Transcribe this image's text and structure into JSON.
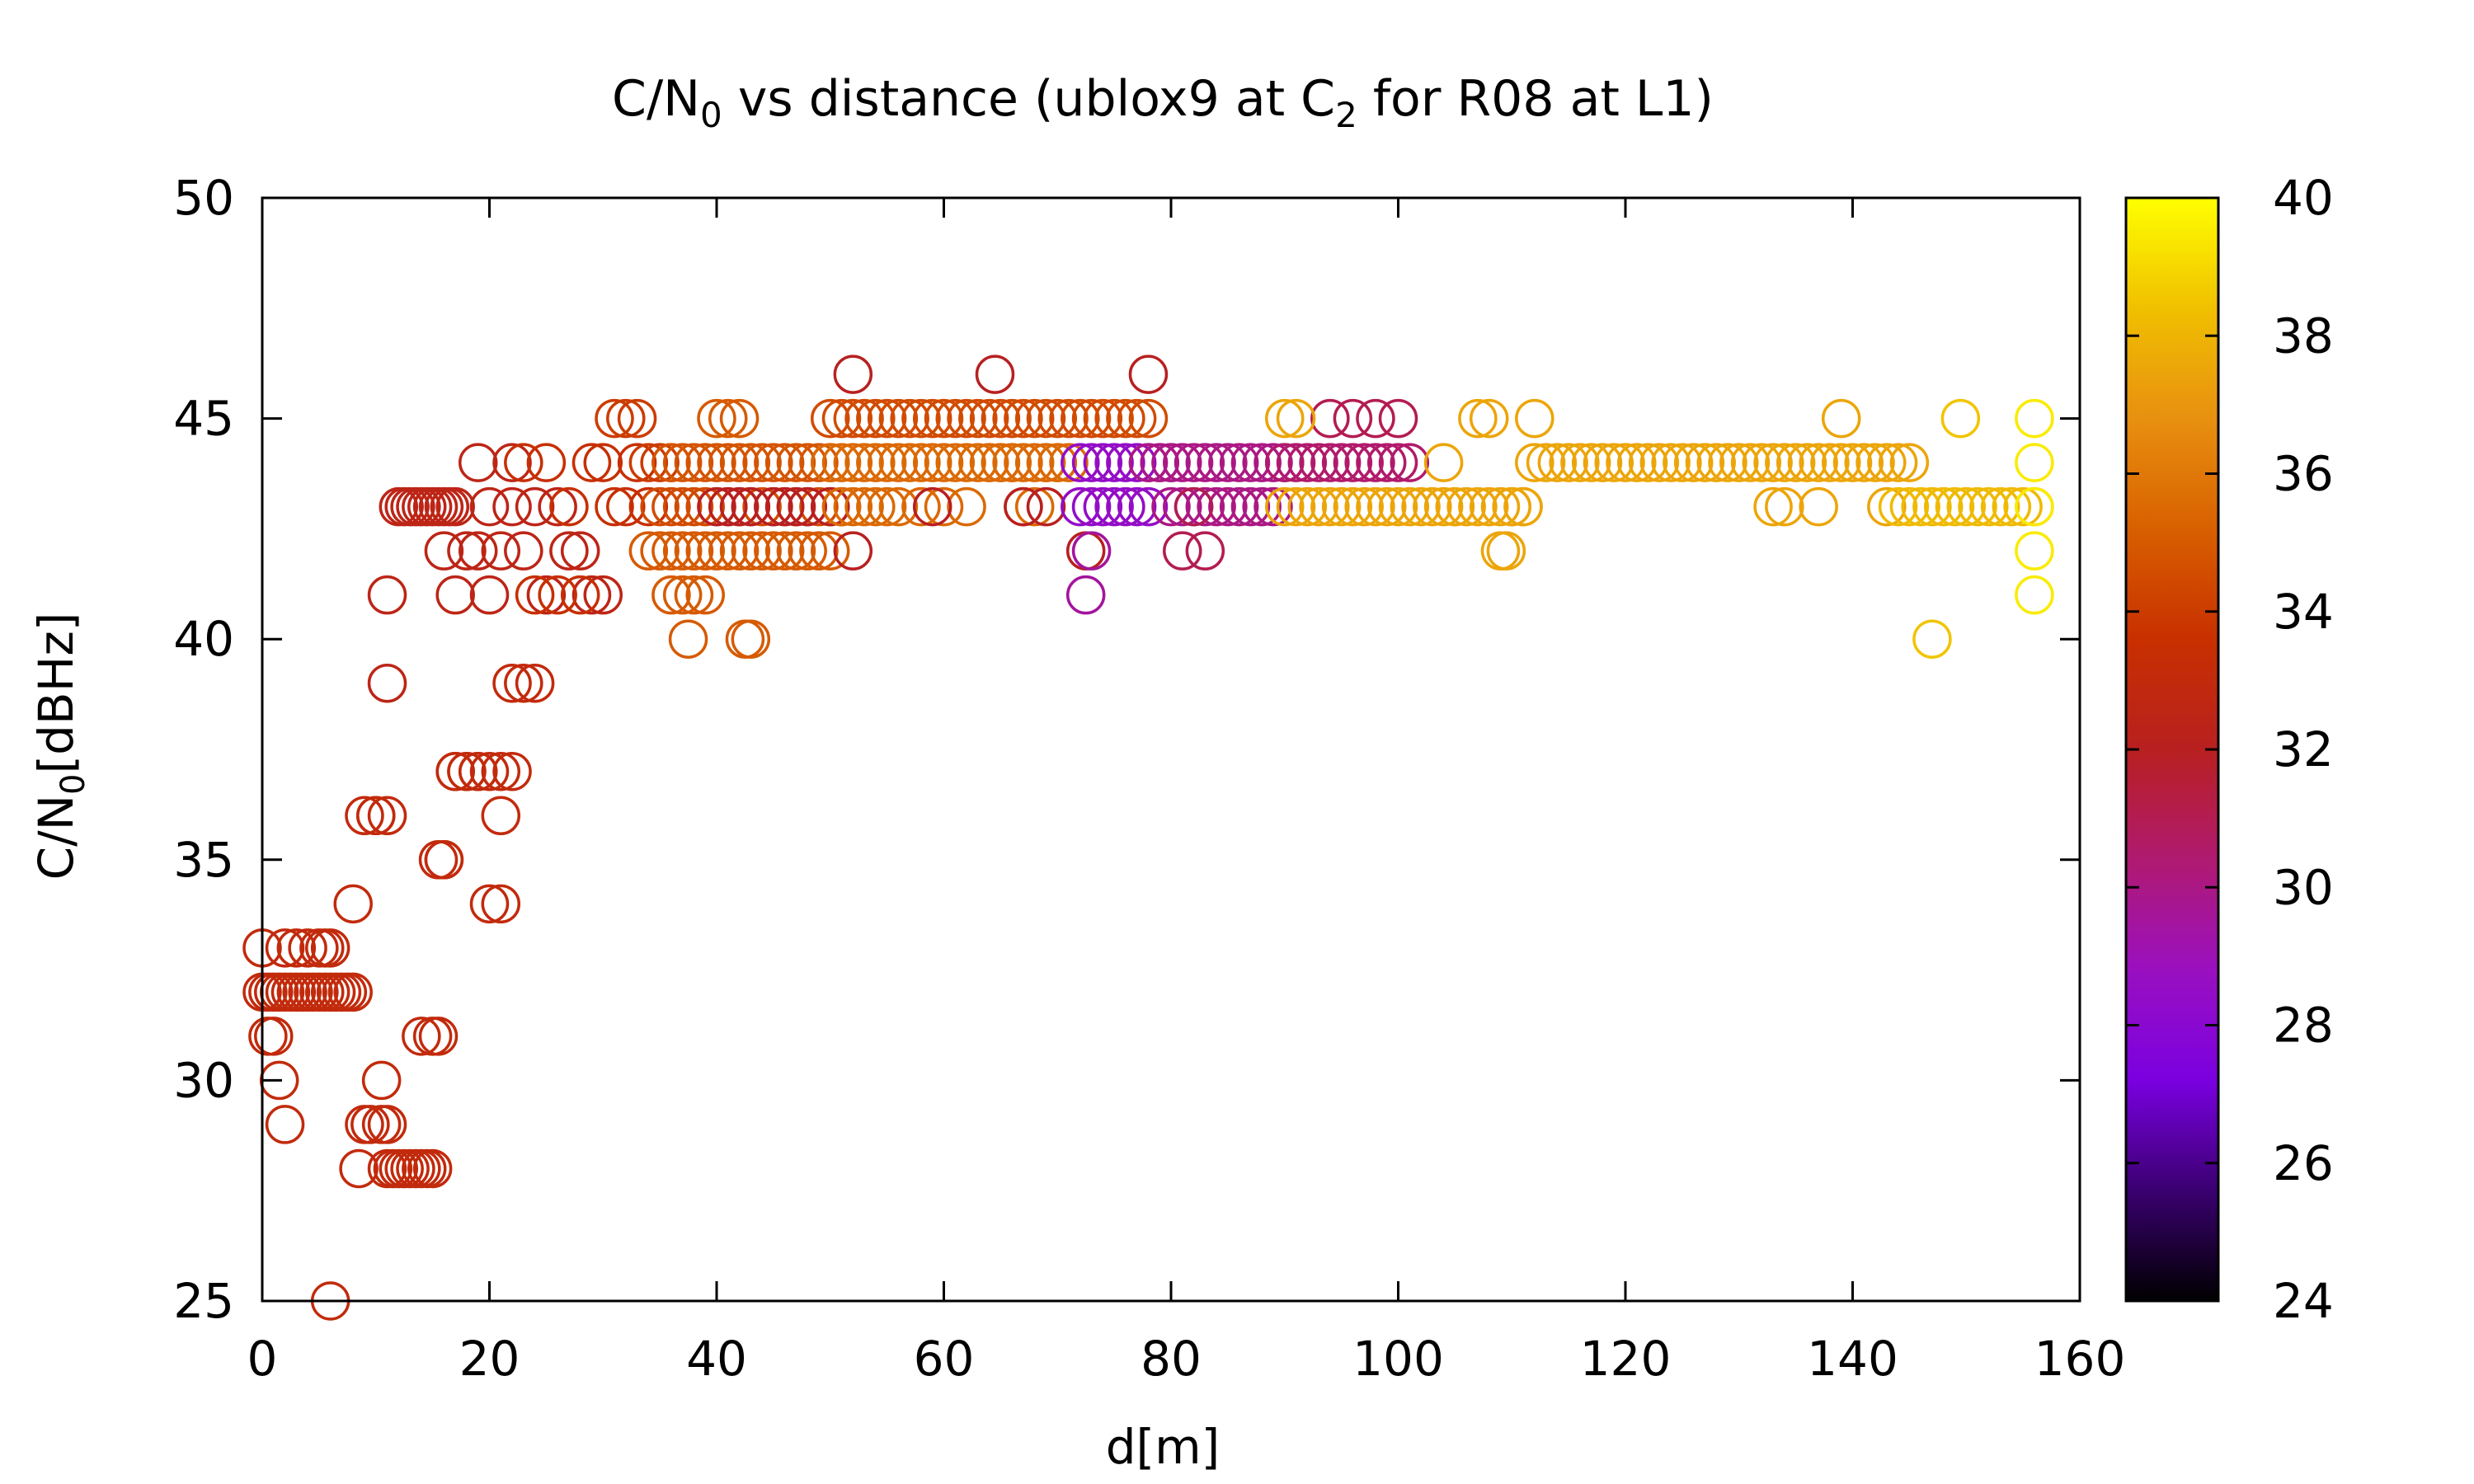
{
  "chart_data": {
    "type": "scatter",
    "title": "C/N0 vs distance (ublox9 at C2 for R08 at L1)",
    "title_parts": {
      "a": "C/N",
      "a_sub": "0",
      "b": " vs distance (ublox9 at C",
      "b_sub": "2",
      "c": " for R08 at L1)"
    },
    "xlabel": "d[m]",
    "ylabel": "C/N0[dBHz]",
    "ylabel_parts": {
      "a": "C/N",
      "a_sub": "0",
      "b": "[dBHz]"
    },
    "xlim": [
      0,
      160
    ],
    "ylim": [
      25,
      50
    ],
    "xticks": [
      "0",
      "20",
      "40",
      "60",
      "80",
      "100",
      "120",
      "140",
      "160"
    ],
    "yticks": [
      "25",
      "30",
      "35",
      "40",
      "45",
      "50"
    ],
    "colorbar": {
      "range": [
        24,
        40
      ],
      "ticks": [
        "24",
        "26",
        "28",
        "30",
        "32",
        "34",
        "36",
        "38",
        "40"
      ],
      "palette": [
        "#000000",
        "#3a0070",
        "#7a00e0",
        "#9a10c0",
        "#b01a70",
        "#b82020",
        "#c83000",
        "#d86000",
        "#e89010",
        "#f0c000",
        "#ffff00"
      ]
    },
    "marker": "open circle",
    "point_sets": [
      {
        "x": [
          0,
          0.5,
          1,
          1.5,
          2,
          2.5,
          3,
          3.5,
          4,
          4.5,
          5,
          5.5,
          6,
          6.5,
          7,
          7.5,
          8
        ],
        "y": [
          32,
          32,
          32,
          32,
          32,
          32,
          32,
          32,
          32,
          32,
          32,
          32,
          32,
          32,
          32,
          32,
          32
        ],
        "c": 33
      },
      {
        "x": [
          0,
          2,
          3,
          4,
          5,
          5.5,
          6
        ],
        "y": [
          33,
          33,
          33,
          33,
          33,
          33,
          33
        ],
        "c": 33
      },
      {
        "x": [
          0.5,
          1,
          1.5,
          2
        ],
        "y": [
          31,
          31,
          30,
          29
        ],
        "c": 33
      },
      {
        "x": [
          6
        ],
        "y": [
          25
        ],
        "c": 33
      },
      {
        "x": [
          8,
          10.5,
          9,
          9.5,
          10.5,
          11,
          10,
          10,
          11
        ],
        "y": [
          34,
          30,
          29,
          29,
          29,
          29,
          36,
          36,
          36
        ],
        "c": 33
      },
      {
        "x": [
          9,
          11,
          11.5,
          12,
          12.5,
          13,
          13.5,
          14,
          14.5,
          15
        ],
        "y": [
          36,
          28,
          28,
          28,
          28,
          28,
          28,
          28,
          28,
          28
        ],
        "c": 33
      },
      {
        "x": [
          8.5,
          14,
          15,
          15.5,
          15.5,
          16,
          16,
          17,
          17,
          18,
          18,
          19,
          19,
          20,
          21,
          22
        ],
        "y": [
          28,
          31,
          31,
          31,
          35,
          35,
          35,
          37,
          37,
          37,
          37,
          37,
          37,
          37,
          37,
          37
        ],
        "c": 33
      },
      {
        "x": [
          20,
          21,
          21,
          22,
          23,
          24
        ],
        "y": [
          34,
          34,
          36,
          39,
          39,
          39
        ],
        "c": 33
      },
      {
        "x": [
          11,
          11,
          12,
          12.5,
          13,
          13.5,
          14,
          14.5,
          15,
          15.5,
          16,
          16.5,
          17
        ],
        "y": [
          41,
          39,
          43,
          43,
          43,
          43,
          43,
          43,
          43,
          43,
          43,
          43,
          43
        ],
        "c": 32.5
      },
      {
        "x": [
          16,
          17,
          18,
          19,
          19,
          20,
          20,
          21,
          22,
          22,
          23,
          24,
          25,
          26,
          27,
          28,
          29,
          30
        ],
        "y": [
          42,
          41,
          42,
          42,
          44,
          43,
          41,
          42,
          44,
          43,
          42,
          43,
          41,
          43,
          42,
          42,
          41,
          41
        ],
        "c": 32.5
      },
      {
        "x": [
          23,
          24,
          25,
          26,
          27,
          28,
          29,
          30,
          31,
          32,
          33,
          34
        ],
        "y": [
          44,
          41,
          44,
          41,
          43,
          41,
          44,
          44,
          43,
          43,
          44,
          43
        ],
        "c": 33.5
      },
      {
        "x": [
          31,
          32,
          33,
          34,
          35,
          36
        ],
        "y": [
          45,
          45,
          45,
          44,
          44,
          44
        ],
        "c": 34
      },
      {
        "x": [
          34,
          35,
          36,
          37,
          38,
          39,
          40,
          41,
          42,
          43,
          44,
          45,
          46,
          47,
          48,
          49,
          50
        ],
        "y": [
          42,
          42,
          42,
          42,
          42,
          42,
          42,
          42,
          42,
          42,
          42,
          42,
          42,
          42,
          42,
          42,
          42
        ],
        "c": 35
      },
      {
        "x": [
          35,
          36,
          37,
          38,
          39,
          40,
          41,
          42,
          43,
          44,
          45,
          46,
          47,
          48,
          49,
          50
        ],
        "y": [
          43,
          43,
          43,
          43,
          43,
          43,
          43,
          43,
          43,
          43,
          43,
          43,
          43,
          43,
          43,
          43
        ],
        "c": 34.5
      },
      {
        "x": [
          36,
          37,
          38,
          39,
          40,
          41,
          42,
          43,
          44,
          45,
          46,
          47,
          48,
          49,
          50
        ],
        "y": [
          44,
          44,
          44,
          44,
          44,
          44,
          44,
          44,
          44,
          44,
          44,
          44,
          44,
          44,
          44
        ],
        "c": 34.8
      },
      {
        "x": [
          36,
          37,
          37.5,
          38,
          39,
          40,
          41,
          42,
          42.5,
          43
        ],
        "y": [
          41,
          41,
          40,
          41,
          41,
          45,
          45,
          45,
          40,
          40
        ],
        "c": 35
      },
      {
        "x": [
          40,
          41,
          42,
          43,
          45,
          46,
          47,
          48,
          50,
          51,
          52
        ],
        "y": [
          43,
          43,
          43,
          43,
          43,
          43,
          43,
          43,
          43,
          43,
          42
        ],
        "c": 32
      },
      {
        "x": [
          50,
          51,
          52,
          53,
          54,
          55,
          56,
          57,
          58,
          59,
          60,
          61,
          62,
          63,
          64,
          65,
          66,
          67,
          68,
          69,
          70,
          71,
          72,
          73,
          74,
          75,
          76,
          77,
          78
        ],
        "y": [
          45,
          45,
          45,
          45,
          45,
          45,
          45,
          45,
          45,
          45,
          45,
          45,
          45,
          45,
          45,
          45,
          45,
          45,
          45,
          45,
          45,
          45,
          45,
          45,
          45,
          45,
          45,
          45,
          45
        ],
        "c": 34.5
      },
      {
        "x": [
          50,
          51,
          52,
          53,
          54,
          55,
          56,
          57,
          58,
          59,
          60,
          61,
          62,
          63,
          64,
          65,
          66,
          67,
          68,
          69,
          70,
          71
        ],
        "y": [
          44,
          44,
          44,
          44,
          44,
          44,
          44,
          44,
          44,
          44,
          44,
          44,
          44,
          44,
          44,
          44,
          44,
          44,
          44,
          44,
          44,
          44
        ],
        "c": 35.5
      },
      {
        "x": [
          51,
          52,
          53,
          54,
          55,
          56,
          58,
          60,
          62,
          64,
          65,
          66,
          67,
          68,
          69,
          70
        ],
        "y": [
          43,
          43,
          43,
          43,
          43,
          43,
          43,
          43,
          43,
          44,
          44,
          44,
          43,
          43,
          44,
          44
        ],
        "c": 35.5
      },
      {
        "x": [
          52,
          59,
          64.5,
          67,
          69,
          72.5,
          78
        ],
        "y": [
          46,
          43,
          46,
          43,
          43,
          42,
          46
        ],
        "c": 32
      },
      {
        "x": [
          72,
          73,
          74,
          75,
          76,
          77,
          78,
          79,
          80
        ],
        "y": [
          44,
          44,
          44,
          44,
          44,
          44,
          44,
          44,
          44
        ],
        "c": 28.5
      },
      {
        "x": [
          72,
          73,
          74,
          75,
          76,
          77,
          78
        ],
        "y": [
          43,
          43,
          43,
          43,
          43,
          43,
          43
        ],
        "c": 28.5
      },
      {
        "x": [
          72.5,
          73
        ],
        "y": [
          41,
          42
        ],
        "c": 29.5
      },
      {
        "x": [
          78,
          79,
          80,
          81,
          82,
          83,
          84,
          85,
          86,
          87,
          88,
          89,
          90
        ],
        "y": [
          44,
          44,
          44,
          44,
          44,
          44,
          44,
          44,
          44,
          44,
          44,
          44,
          44
        ],
        "c": 30
      },
      {
        "x": [
          80,
          81,
          82,
          83,
          84,
          85,
          86,
          87,
          88,
          89
        ],
        "y": [
          43,
          43,
          43,
          43,
          43,
          43,
          43,
          43,
          43,
          43
        ],
        "c": 30
      },
      {
        "x": [
          81,
          82,
          83
        ],
        "y": [
          42,
          43,
          42
        ],
        "c": 31
      },
      {
        "x": [
          90,
          91,
          92,
          93,
          94,
          95,
          96,
          97,
          98,
          99,
          100,
          101
        ],
        "y": [
          44,
          44,
          44,
          44,
          44,
          44,
          44,
          44,
          44,
          44,
          44,
          44
        ],
        "c": 30.5
      },
      {
        "x": [
          94,
          96,
          98,
          100
        ],
        "y": [
          45,
          45,
          45,
          45
        ],
        "c": 31
      },
      {
        "x": [
          90,
          91,
          92,
          93,
          94,
          95,
          96,
          97,
          98,
          99,
          100,
          101,
          102,
          103,
          104,
          105,
          106,
          107,
          108,
          109,
          110,
          111
        ],
        "y": [
          43,
          43,
          43,
          43,
          43,
          43,
          43,
          43,
          43,
          43,
          43,
          43,
          43,
          43,
          43,
          43,
          43,
          43,
          43,
          43,
          43,
          43
        ],
        "c": 37.5
      },
      {
        "x": [
          90,
          91,
          104,
          105,
          107,
          108,
          109,
          109.5,
          110,
          111,
          112
        ],
        "y": [
          45,
          45,
          44,
          43,
          45,
          45,
          42,
          42,
          43,
          43,
          45
        ],
        "c": 37.5
      },
      {
        "x": [
          112,
          113,
          114,
          115,
          116,
          117,
          118,
          119,
          120,
          121,
          122,
          123,
          124,
          125,
          126,
          127,
          128,
          129,
          130,
          131,
          132,
          133,
          134,
          135,
          136,
          137,
          138,
          139,
          140,
          141,
          142,
          143,
          144,
          145
        ],
        "y": [
          44,
          44,
          44,
          44,
          44,
          44,
          44,
          44,
          44,
          44,
          44,
          44,
          44,
          44,
          44,
          44,
          44,
          44,
          44,
          44,
          44,
          44,
          44,
          44,
          44,
          44,
          44,
          44,
          44,
          44,
          44,
          44,
          44,
          44
        ],
        "c": 37.5
      },
      {
        "x": [
          133,
          134,
          137,
          139,
          143
        ],
        "y": [
          43,
          43,
          43,
          45,
          43
        ],
        "c": 37.5
      },
      {
        "x": [
          144,
          145,
          146,
          147,
          148,
          149,
          150,
          151,
          152,
          153,
          154,
          155,
          156
        ],
        "y": [
          43,
          43,
          43,
          43,
          43,
          43,
          43,
          43,
          43,
          43,
          43,
          43,
          43
        ],
        "c": 38.2
      },
      {
        "x": [
          147,
          149.5
        ],
        "y": [
          40,
          45
        ],
        "c": 38.5
      },
      {
        "x": [
          156,
          156,
          156,
          156,
          156
        ],
        "y": [
          45,
          44,
          43,
          42,
          41
        ],
        "c": 39.5
      }
    ]
  }
}
